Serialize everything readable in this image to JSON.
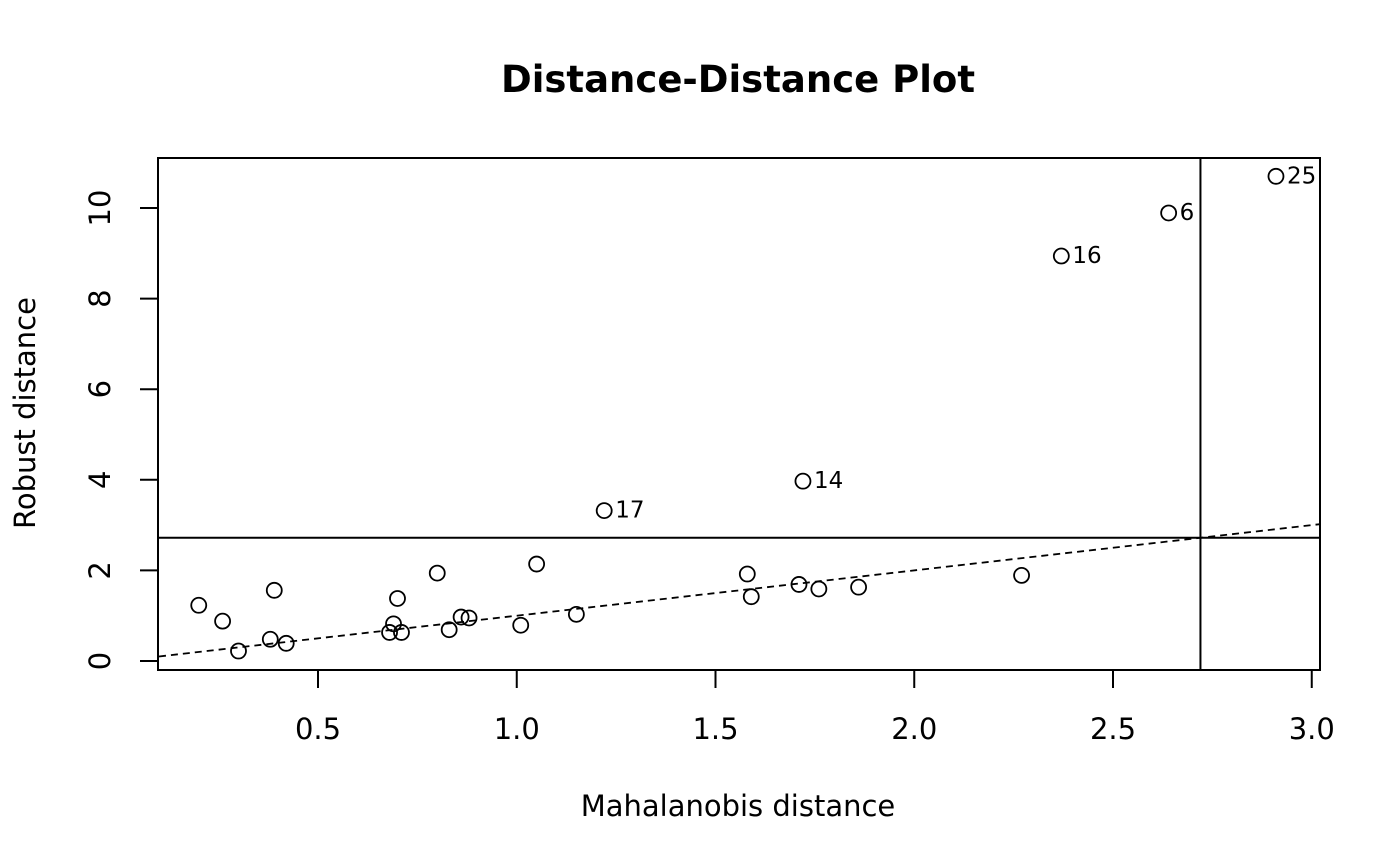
{
  "chart_data": {
    "type": "scatter",
    "title": "Distance-Distance Plot",
    "xlabel": "Mahalanobis distance",
    "ylabel": "Robust distance",
    "xlim": [
      0.1,
      3.02
    ],
    "ylim": [
      -0.2,
      11.1
    ],
    "x_ticks": [
      0.5,
      1.0,
      1.5,
      2.0,
      2.5,
      3.0
    ],
    "x_tick_labels": [
      "0.5",
      "1.0",
      "1.5",
      "2.0",
      "2.5",
      "3.0"
    ],
    "y_ticks": [
      0,
      2,
      4,
      6,
      8,
      10
    ],
    "y_tick_labels": [
      "0",
      "2",
      "4",
      "6",
      "8",
      "10"
    ],
    "cutoff_x": 2.72,
    "cutoff_y": 2.72,
    "reference_line": {
      "slope": 1,
      "intercept": 0,
      "style": "dashed"
    },
    "points": [
      {
        "x": 0.2,
        "y": 1.23
      },
      {
        "x": 0.26,
        "y": 0.88
      },
      {
        "x": 0.3,
        "y": 0.22
      },
      {
        "x": 0.38,
        "y": 0.48
      },
      {
        "x": 0.39,
        "y": 1.56
      },
      {
        "x": 0.42,
        "y": 0.39
      },
      {
        "x": 0.68,
        "y": 0.63
      },
      {
        "x": 0.69,
        "y": 0.82
      },
      {
        "x": 0.7,
        "y": 1.38
      },
      {
        "x": 0.71,
        "y": 0.63
      },
      {
        "x": 0.8,
        "y": 1.94
      },
      {
        "x": 0.83,
        "y": 0.69
      },
      {
        "x": 0.86,
        "y": 0.97
      },
      {
        "x": 0.88,
        "y": 0.95
      },
      {
        "x": 1.01,
        "y": 0.79
      },
      {
        "x": 1.05,
        "y": 2.14
      },
      {
        "x": 1.15,
        "y": 1.03
      },
      {
        "x": 1.22,
        "y": 3.32,
        "label": "17"
      },
      {
        "x": 1.58,
        "y": 1.92
      },
      {
        "x": 1.59,
        "y": 1.42
      },
      {
        "x": 1.71,
        "y": 1.69
      },
      {
        "x": 1.72,
        "y": 3.97,
        "label": "14"
      },
      {
        "x": 1.76,
        "y": 1.59
      },
      {
        "x": 1.86,
        "y": 1.63
      },
      {
        "x": 2.27,
        "y": 1.89
      },
      {
        "x": 2.37,
        "y": 8.94,
        "label": "16"
      },
      {
        "x": 2.64,
        "y": 9.89,
        "label": "6"
      },
      {
        "x": 2.91,
        "y": 10.7,
        "label": "25"
      }
    ]
  }
}
